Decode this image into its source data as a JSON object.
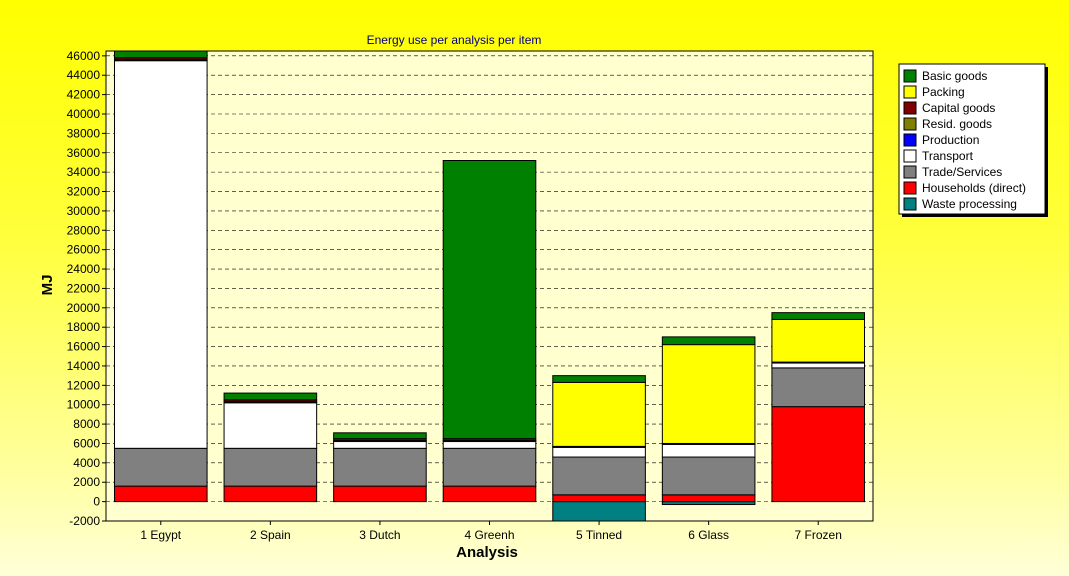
{
  "chart_data": {
    "type": "bar",
    "stacked": true,
    "title": "Energy use per analysis per item",
    "xlabel": "Analysis",
    "ylabel": "MJ",
    "ylim": [
      -2000,
      46500
    ],
    "yticks": [
      -2000,
      0,
      2000,
      4000,
      6000,
      8000,
      10000,
      12000,
      14000,
      16000,
      18000,
      20000,
      22000,
      24000,
      26000,
      28000,
      30000,
      32000,
      34000,
      36000,
      38000,
      40000,
      42000,
      44000,
      46000
    ],
    "grid": true,
    "legend_position": "right",
    "categories": [
      "1 Egypt",
      "2 Spain",
      "3 Dutch",
      "4 Greenh",
      "5 Tinned",
      "6 Glass",
      "7 Frozen"
    ],
    "series": [
      {
        "name": "Waste processing",
        "color": "#008080",
        "values": [
          0,
          0,
          0,
          0,
          -2000,
          -300,
          0
        ]
      },
      {
        "name": "Households (direct)",
        "color": "#ff0000",
        "values": [
          1600,
          1600,
          1600,
          1600,
          700,
          700,
          9800
        ]
      },
      {
        "name": "Trade/Services",
        "color": "#808080",
        "values": [
          3900,
          3900,
          3900,
          3900,
          3900,
          3900,
          4000
        ]
      },
      {
        "name": "Transport",
        "color": "#ffffff",
        "values": [
          40000,
          4700,
          700,
          700,
          1000,
          1300,
          500
        ]
      },
      {
        "name": "Production",
        "color": "#0000ff",
        "values": [
          0,
          0,
          0,
          0,
          0,
          0,
          0
        ]
      },
      {
        "name": "Resid. goods",
        "color": "#808000",
        "values": [
          100,
          100,
          100,
          100,
          100,
          100,
          100
        ]
      },
      {
        "name": "Capital goods",
        "color": "#800000",
        "values": [
          200,
          200,
          200,
          200,
          0,
          0,
          0
        ]
      },
      {
        "name": "Packing",
        "color": "#ffff00",
        "values": [
          0,
          0,
          0,
          0,
          6600,
          10200,
          4400
        ]
      },
      {
        "name": "Basic goods",
        "color": "#008000",
        "values": [
          700,
          700,
          600,
          28700,
          700,
          800,
          700
        ]
      }
    ],
    "legend_order": [
      "Basic goods",
      "Packing",
      "Capital goods",
      "Resid. goods",
      "Production",
      "Transport",
      "Trade/Services",
      "Households (direct)",
      "Waste processing"
    ]
  }
}
